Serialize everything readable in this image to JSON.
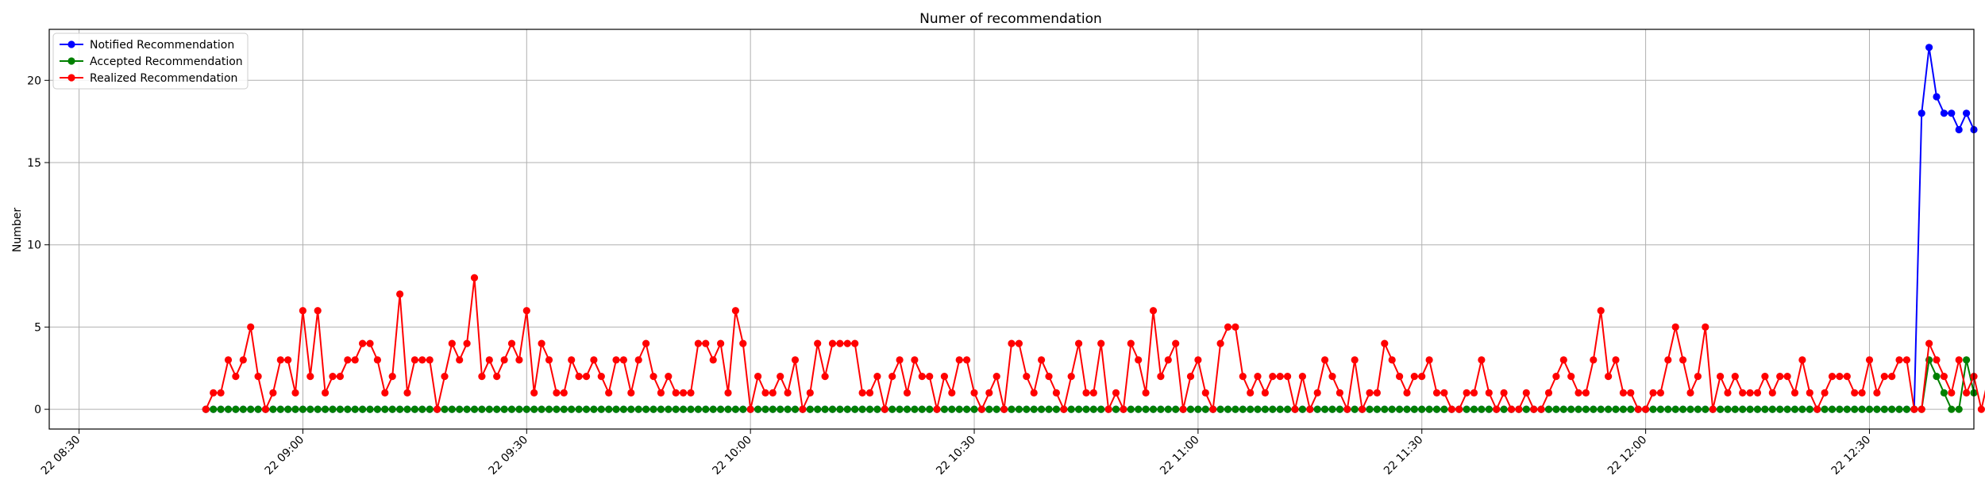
{
  "chart_data": {
    "type": "line",
    "title": "Numer of recommendation",
    "ylabel": "Number",
    "xlabel": "",
    "date_prefix": "22",
    "x_start": "08:47",
    "x_step_minutes": 1,
    "xlim": [
      "08:26",
      "12:44"
    ],
    "xticks": [
      "08:30",
      "09:00",
      "09:30",
      "10:00",
      "10:30",
      "11:00",
      "11:30",
      "12:00",
      "12:30"
    ],
    "xtick_labels": [
      "22 08:30",
      "22 09:00",
      "22 09:30",
      "22 10:00",
      "22 10:30",
      "22 11:00",
      "22 11:30",
      "22 12:00",
      "22 12:30"
    ],
    "ylim": [
      -1.2,
      23.1
    ],
    "yticks": [
      0,
      5,
      10,
      15,
      20
    ],
    "grid": true,
    "legend_position": "upper-left",
    "series": [
      {
        "name": "Notified Recommendation",
        "color": "#0000ff",
        "values": [
          0,
          0,
          0,
          0,
          0,
          0,
          0,
          0,
          0,
          0,
          0,
          0,
          0,
          0,
          0,
          0,
          0,
          0,
          0,
          0,
          0,
          0,
          0,
          0,
          0,
          0,
          0,
          0,
          0,
          0,
          0,
          0,
          0,
          0,
          0,
          0,
          0,
          0,
          0,
          0,
          0,
          0,
          0,
          0,
          0,
          0,
          0,
          0,
          0,
          0,
          0,
          0,
          0,
          0,
          0,
          0,
          0,
          0,
          0,
          0,
          0,
          0,
          0,
          0,
          0,
          0,
          0,
          0,
          0,
          0,
          0,
          0,
          0,
          0,
          0,
          0,
          0,
          0,
          0,
          0,
          0,
          0,
          0,
          0,
          0,
          0,
          0,
          0,
          0,
          0,
          0,
          0,
          0,
          0,
          0,
          0,
          0,
          0,
          0,
          0,
          0,
          0,
          0,
          0,
          0,
          0,
          0,
          0,
          0,
          0,
          0,
          0,
          0,
          0,
          0,
          0,
          0,
          0,
          0,
          0,
          0,
          0,
          0,
          0,
          0,
          0,
          0,
          0,
          0,
          0,
          0,
          0,
          0,
          0,
          0,
          0,
          0,
          0,
          0,
          0,
          0,
          0,
          0,
          0,
          0,
          0,
          0,
          0,
          0,
          0,
          0,
          0,
          0,
          0,
          0,
          0,
          0,
          0,
          0,
          0,
          0,
          0,
          0,
          0,
          0,
          0,
          0,
          0,
          0,
          0,
          0,
          0,
          0,
          0,
          0,
          0,
          0,
          0,
          0,
          0,
          0,
          0,
          0,
          0,
          0,
          0,
          0,
          0,
          0,
          0,
          0,
          0,
          0,
          0,
          0,
          0,
          0,
          0,
          0,
          0,
          0,
          0,
          0,
          0,
          0,
          0,
          0,
          0,
          0,
          0,
          0,
          0,
          0,
          0,
          0,
          0,
          0,
          0,
          0,
          0,
          0,
          0,
          0,
          0,
          0,
          0,
          0,
          0,
          0,
          0,
          18,
          22,
          19,
          18,
          18,
          17,
          18,
          17
        ]
      },
      {
        "name": "Accepted Recommendation",
        "color": "#008000",
        "values": [
          0,
          0,
          0,
          0,
          0,
          0,
          0,
          0,
          0,
          0,
          0,
          0,
          0,
          0,
          0,
          0,
          0,
          0,
          0,
          0,
          0,
          0,
          0,
          0,
          0,
          0,
          0,
          0,
          0,
          0,
          0,
          0,
          0,
          0,
          0,
          0,
          0,
          0,
          0,
          0,
          0,
          0,
          0,
          0,
          0,
          0,
          0,
          0,
          0,
          0,
          0,
          0,
          0,
          0,
          0,
          0,
          0,
          0,
          0,
          0,
          0,
          0,
          0,
          0,
          0,
          0,
          0,
          0,
          0,
          0,
          0,
          0,
          0,
          0,
          0,
          0,
          0,
          0,
          0,
          0,
          0,
          0,
          0,
          0,
          0,
          0,
          0,
          0,
          0,
          0,
          0,
          0,
          0,
          0,
          0,
          0,
          0,
          0,
          0,
          0,
          0,
          0,
          0,
          0,
          0,
          0,
          0,
          0,
          0,
          0,
          0,
          0,
          0,
          0,
          0,
          0,
          0,
          0,
          0,
          0,
          0,
          0,
          0,
          0,
          0,
          0,
          0,
          0,
          0,
          0,
          0,
          0,
          0,
          0,
          0,
          0,
          0,
          0,
          0,
          0,
          0,
          0,
          0,
          0,
          0,
          0,
          0,
          0,
          0,
          0,
          0,
          0,
          0,
          0,
          0,
          0,
          0,
          0,
          0,
          0,
          0,
          0,
          0,
          0,
          0,
          0,
          0,
          0,
          0,
          0,
          0,
          0,
          0,
          0,
          0,
          0,
          0,
          0,
          0,
          0,
          0,
          0,
          0,
          0,
          0,
          0,
          0,
          0,
          0,
          0,
          0,
          0,
          0,
          0,
          0,
          0,
          0,
          0,
          0,
          0,
          0,
          0,
          0,
          0,
          0,
          0,
          0,
          0,
          0,
          0,
          0,
          0,
          0,
          0,
          0,
          0,
          0,
          0,
          0,
          0,
          0,
          0,
          0,
          0,
          0,
          0,
          0,
          0,
          0,
          0,
          0,
          3,
          2,
          1,
          0,
          0,
          3,
          1
        ]
      },
      {
        "name": "Realized Recommendation",
        "color": "#ff0000",
        "values": [
          0,
          1,
          1,
          3,
          2,
          3,
          5,
          2,
          0,
          1,
          3,
          3,
          1,
          6,
          2,
          6,
          1,
          2,
          2,
          3,
          3,
          4,
          4,
          3,
          1,
          2,
          7,
          1,
          3,
          3,
          3,
          0,
          2,
          4,
          3,
          4,
          8,
          2,
          3,
          2,
          3,
          4,
          3,
          6,
          1,
          4,
          3,
          1,
          1,
          3,
          2,
          2,
          3,
          2,
          1,
          3,
          3,
          1,
          3,
          4,
          2,
          1,
          2,
          1,
          1,
          1,
          4,
          4,
          3,
          4,
          1,
          6,
          4,
          0,
          2,
          1,
          1,
          2,
          1,
          3,
          0,
          1,
          4,
          2,
          4,
          4,
          4,
          4,
          1,
          1,
          2,
          0,
          2,
          3,
          1,
          3,
          2,
          2,
          0,
          2,
          1,
          3,
          3,
          1,
          0,
          1,
          2,
          0,
          4,
          4,
          2,
          1,
          3,
          2,
          1,
          0,
          2,
          4,
          1,
          1,
          4,
          0,
          1,
          0,
          4,
          3,
          1,
          6,
          2,
          3,
          4,
          0,
          2,
          3,
          1,
          0,
          4,
          5,
          5,
          2,
          1,
          2,
          1,
          2,
          2,
          2,
          0,
          2,
          0,
          1,
          3,
          2,
          1,
          0,
          3,
          0,
          1,
          1,
          4,
          3,
          2,
          1,
          2,
          2,
          3,
          1,
          1,
          0,
          0,
          1,
          1,
          3,
          1,
          0,
          1,
          0,
          0,
          1,
          0,
          0,
          1,
          2,
          3,
          2,
          1,
          1,
          3,
          6,
          2,
          3,
          1,
          1,
          0,
          0,
          1,
          1,
          3,
          5,
          3,
          1,
          2,
          5,
          0,
          2,
          1,
          2,
          1,
          1,
          1,
          2,
          1,
          2,
          2,
          1,
          3,
          1,
          0,
          1,
          2,
          2,
          2,
          1,
          1,
          3,
          1,
          2,
          2,
          3,
          3,
          0,
          0,
          4,
          3,
          2,
          1,
          3,
          1,
          2,
          0,
          2
        ]
      }
    ]
  }
}
